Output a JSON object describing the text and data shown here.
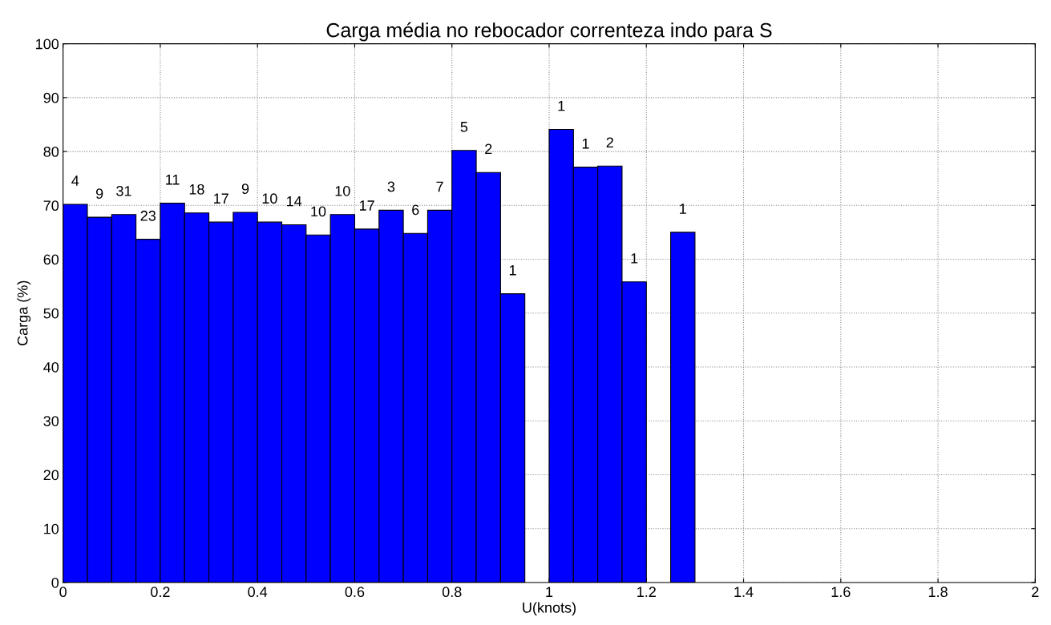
{
  "chart_data": {
    "type": "histogram",
    "title": "Carga média no rebocador correnteza indo para S",
    "xlabel": "U(knots)",
    "ylabel": "Carga (%)",
    "bins": [
      0,
      0.05,
      0.1,
      0.15,
      0.2,
      0.25,
      0.3,
      0.35,
      0.4,
      0.45,
      0.5,
      0.55,
      0.6,
      0.65,
      0.7,
      0.75,
      0.8,
      0.85,
      0.9,
      0.95,
      1.0,
      1.05,
      1.1,
      1.15,
      1.2,
      1.25,
      1.3
    ],
    "values": [
      70.2,
      67.8,
      68.3,
      63.7,
      70.4,
      68.6,
      66.9,
      68.7,
      66.9,
      66.4,
      64.5,
      68.3,
      65.6,
      69.1,
      64.8,
      69.1,
      80.2,
      76.1,
      53.6,
      null,
      84.1,
      77.1,
      77.3,
      55.8,
      null,
      65.0
    ],
    "annotations": [
      {
        "text": "4",
        "x": 0.025,
        "y": 70.2
      },
      {
        "text": "9",
        "x": 0.075,
        "y": 67.8
      },
      {
        "text": "31",
        "x": 0.125,
        "y": 68.3
      },
      {
        "text": "23",
        "x": 0.175,
        "y": 63.7
      },
      {
        "text": "11",
        "x": 0.225,
        "y": 70.4
      },
      {
        "text": "18",
        "x": 0.275,
        "y": 68.6
      },
      {
        "text": "17",
        "x": 0.325,
        "y": 66.9
      },
      {
        "text": "9",
        "x": 0.375,
        "y": 68.7
      },
      {
        "text": "10",
        "x": 0.425,
        "y": 66.9
      },
      {
        "text": "14",
        "x": 0.475,
        "y": 66.4
      },
      {
        "text": "10",
        "x": 0.525,
        "y": 64.5
      },
      {
        "text": "10",
        "x": 0.575,
        "y": 68.3
      },
      {
        "text": "17",
        "x": 0.625,
        "y": 65.6
      },
      {
        "text": "3",
        "x": 0.675,
        "y": 69.1
      },
      {
        "text": "6",
        "x": 0.725,
        "y": 64.8
      },
      {
        "text": "7",
        "x": 0.775,
        "y": 69.1
      },
      {
        "text": "5",
        "x": 0.825,
        "y": 80.2
      },
      {
        "text": "2",
        "x": 0.875,
        "y": 76.1
      },
      {
        "text": "1",
        "x": 0.925,
        "y": 53.6
      },
      {
        "text": "1",
        "x": 1.025,
        "y": 84.1
      },
      {
        "text": "1",
        "x": 1.075,
        "y": 77.1
      },
      {
        "text": "2",
        "x": 1.125,
        "y": 77.3
      },
      {
        "text": "1",
        "x": 1.175,
        "y": 55.8
      },
      {
        "text": "1",
        "x": 1.275,
        "y": 65.0
      }
    ],
    "color": "#0000ff",
    "xlim": [
      0,
      2
    ],
    "xticks": [
      0,
      0.2,
      0.4,
      0.6,
      0.8,
      1,
      1.2,
      1.4,
      1.6,
      1.8,
      2
    ],
    "ylim": [
      0,
      100
    ],
    "yticks": [
      0,
      10,
      20,
      30,
      40,
      50,
      60,
      70,
      80,
      90,
      100
    ],
    "grid": true
  }
}
